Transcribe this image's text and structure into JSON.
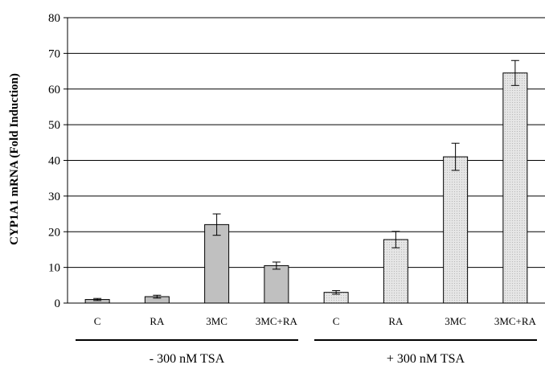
{
  "chart_data": {
    "type": "bar",
    "ylabel": "CYP1A1 mRNA (Fold Induction)",
    "ylim": [
      0,
      80
    ],
    "yticks": [
      0,
      10,
      20,
      30,
      40,
      50,
      60,
      70,
      80
    ],
    "grid": true,
    "categories": [
      "C",
      "RA",
      "3MC",
      "3MC+RA",
      "C",
      "RA",
      "3MC",
      "3MC+RA"
    ],
    "values": [
      1.0,
      1.8,
      22.0,
      10.5,
      3.0,
      17.8,
      41.0,
      64.5
    ],
    "errors": [
      0.3,
      0.4,
      3.0,
      1.0,
      0.5,
      2.3,
      3.8,
      3.5
    ],
    "groups": [
      {
        "label": "- 300 nM TSA",
        "start": 0,
        "end": 3,
        "fill": "#c0c0c0"
      },
      {
        "label": "+ 300 nM TSA",
        "start": 4,
        "end": 7,
        "fill": "#e4e4e4"
      }
    ]
  }
}
